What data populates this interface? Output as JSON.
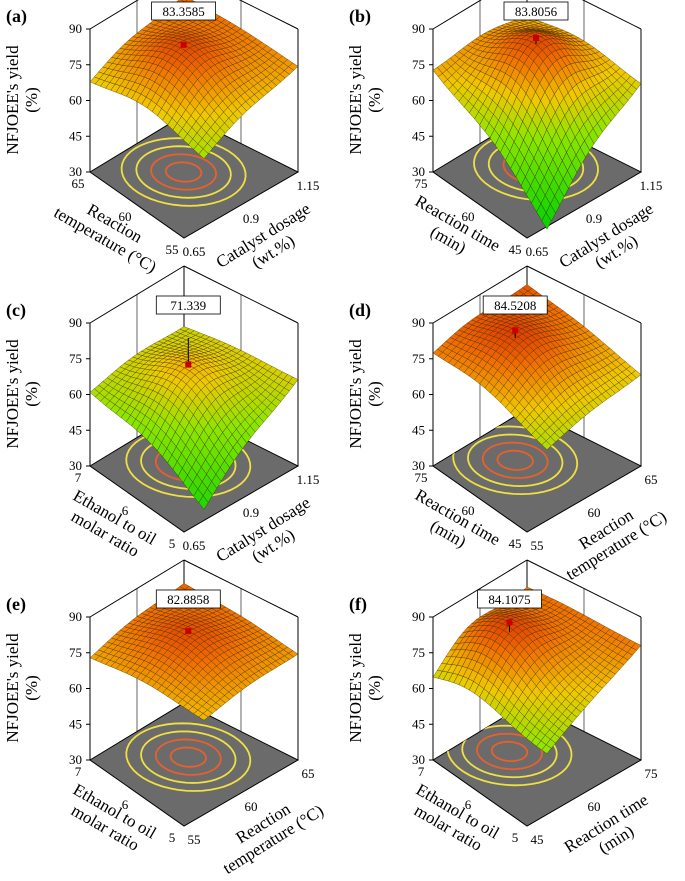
{
  "colors": {
    "floor": "#6b6b6b",
    "contour_outer": "#f0e040",
    "contour_inner": "#e8602a",
    "peak_marker": "#cc0000"
  },
  "chart_data": [
    {
      "type": "surface3d",
      "panel_label": "(a)",
      "zlabel": [
        "NFJOEE's yield",
        "(%)"
      ],
      "zticks": [
        "30",
        "45",
        "60",
        "75",
        "90"
      ],
      "zlim": [
        30,
        90
      ],
      "left_axis": {
        "label": [
          "Reaction",
          "temperature (°C)"
        ],
        "ticks": [
          "55",
          "60",
          "65"
        ]
      },
      "right_axis": {
        "label": [
          "Catalyst dosage",
          "(wt.%)"
        ],
        "ticks": [
          "0.65",
          "0.9",
          "1.15"
        ]
      },
      "max_value": 83.3585,
      "max_label": "83.3585",
      "surface": {
        "z_back": 80,
        "z_left": 66,
        "z_right": 74,
        "z_front": 58,
        "z_peak": 83.3585,
        "peak": [
          0.45,
          0.55
        ]
      }
    },
    {
      "type": "surface3d",
      "panel_label": "(b)",
      "zlabel": [
        "NFJOEE's yield",
        "(%)"
      ],
      "zticks": [
        "30",
        "45",
        "60",
        "75",
        "90"
      ],
      "zlim": [
        30,
        90
      ],
      "left_axis": {
        "label": [
          "Reaction time",
          "(min)"
        ],
        "ticks": [
          "45",
          "60",
          "75"
        ]
      },
      "right_axis": {
        "label": [
          "Catalyst dosage",
          "(wt.%)"
        ],
        "ticks": [
          "0.65",
          "0.9",
          "1.15"
        ]
      },
      "max_value": 83.8056,
      "max_label": "83.8056",
      "surface": {
        "z_back": 70,
        "z_left": 72,
        "z_right": 66,
        "z_front": 28,
        "z_peak": 83.8056,
        "peak": [
          0.45,
          0.45
        ]
      }
    },
    {
      "type": "surface3d",
      "panel_label": "(c)",
      "zlabel": [
        "NFJOEE's yield",
        "(%)"
      ],
      "zticks": [
        "30",
        "45",
        "60",
        "75",
        "90"
      ],
      "zlim": [
        30,
        90
      ],
      "left_axis": {
        "label": [
          "Ethanol to oil",
          "molar ratio"
        ],
        "ticks": [
          "5",
          "6",
          "7"
        ]
      },
      "right_axis": {
        "label": [
          "Catalyst dosage",
          "(wt.%)"
        ],
        "ticks": [
          "0.65",
          "0.9",
          "1.15"
        ]
      },
      "max_value": 71.339,
      "max_label": "71.339",
      "surface": {
        "z_back": 64,
        "z_left": 60,
        "z_right": 66,
        "z_front": 34,
        "z_peak": 71.339,
        "peak": [
          0.45,
          0.5
        ]
      }
    },
    {
      "type": "surface3d",
      "panel_label": "(d)",
      "zlabel": [
        "NFJOEE's yield",
        "(%)"
      ],
      "zticks": [
        "30",
        "45",
        "60",
        "75",
        "90"
      ],
      "zlim": [
        30,
        90
      ],
      "left_axis": {
        "label": [
          "Reaction time",
          "(min)"
        ],
        "ticks": [
          "45",
          "60",
          "75"
        ]
      },
      "right_axis": {
        "label": [
          "Reaction",
          "temperature (°C)"
        ],
        "ticks": [
          "55",
          "60",
          "65"
        ]
      },
      "max_value": 84.5208,
      "max_label": "84.5208",
      "surface": {
        "z_back": 82,
        "z_left": 76,
        "z_right": 68,
        "z_front": 60,
        "z_peak": 84.5208,
        "peak": [
          0.35,
          0.55
        ]
      }
    },
    {
      "type": "surface3d",
      "panel_label": "(e)",
      "zlabel": [
        "NFJOEE's yield",
        "(%)"
      ],
      "zticks": [
        "30",
        "45",
        "60",
        "75",
        "90"
      ],
      "zlim": [
        30,
        90
      ],
      "left_axis": {
        "label": [
          "Ethanol to oil",
          "molar ratio"
        ],
        "ticks": [
          "5",
          "6",
          "7"
        ]
      },
      "right_axis": {
        "label": [
          "Reaction",
          "temperature (°C)"
        ],
        "ticks": [
          "55",
          "60",
          "65"
        ]
      },
      "max_value": 82.8858,
      "max_label": "82.8858",
      "surface": {
        "z_back": 80,
        "z_left": 72,
        "z_right": 74,
        "z_front": 70,
        "z_peak": 82.8858,
        "peak": [
          0.45,
          0.5
        ]
      }
    },
    {
      "type": "surface3d",
      "panel_label": "(f)",
      "zlabel": [
        "NFJOEE's yield",
        "(%)"
      ],
      "zticks": [
        "30",
        "45",
        "60",
        "75",
        "90"
      ],
      "zlim": [
        30,
        90
      ],
      "left_axis": {
        "label": [
          "Ethanol to oil",
          "molar ratio"
        ],
        "ticks": [
          "5",
          "6",
          "7"
        ]
      },
      "right_axis": {
        "label": [
          "Reaction time",
          "(min)"
        ],
        "ticks": [
          "45",
          "60",
          "75"
        ]
      },
      "max_value": 84.1075,
      "max_label": "84.1075",
      "surface": {
        "z_back": 78,
        "z_left": 60,
        "z_right": 78,
        "z_front": 56,
        "z_peak": 84.1075,
        "peak": [
          0.3,
          0.55
        ]
      }
    }
  ]
}
